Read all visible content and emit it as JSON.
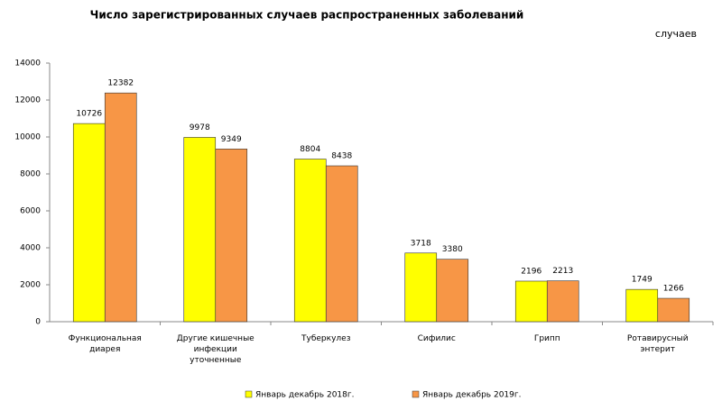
{
  "chart_data": {
    "type": "bar",
    "title": "Число зарегистрированных  случаев  распространенных  заболеваний",
    "unit_label": "случаев",
    "categories": [
      "Функциональная диарея",
      "Другие кишечные инфекции уточненные",
      "Туберкулез",
      "Сифилис",
      "Грипп",
      "Ротавирусный энтерит"
    ],
    "series": [
      {
        "name": "Январь декабрь 2018г.",
        "color": "#ffff00",
        "values": [
          10726,
          9978,
          8804,
          3718,
          2196,
          1749
        ]
      },
      {
        "name": "Январь декабрь 2019г.",
        "color": "#f79646",
        "values": [
          12382,
          9349,
          8438,
          3380,
          2213,
          1266
        ]
      }
    ],
    "ylim": [
      0,
      14000
    ],
    "yticks": [
      0,
      2000,
      4000,
      6000,
      8000,
      10000,
      12000,
      14000
    ],
    "legend": "bottom"
  }
}
